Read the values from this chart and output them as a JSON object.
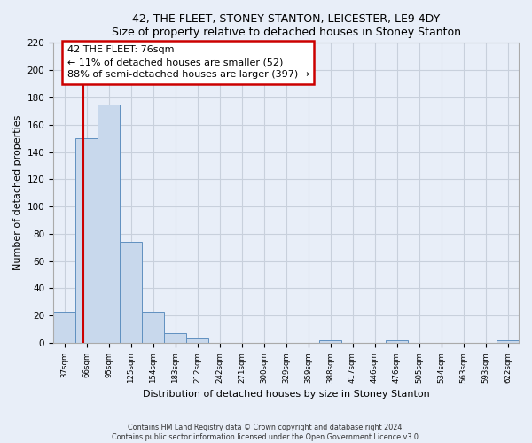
{
  "title": "42, THE FLEET, STONEY STANTON, LEICESTER, LE9 4DY",
  "subtitle": "Size of property relative to detached houses in Stoney Stanton",
  "xlabel": "Distribution of detached houses by size in Stoney Stanton",
  "ylabel": "Number of detached properties",
  "bin_labels": [
    "37sqm",
    "66sqm",
    "95sqm",
    "125sqm",
    "154sqm",
    "183sqm",
    "212sqm",
    "242sqm",
    "271sqm",
    "300sqm",
    "329sqm",
    "359sqm",
    "388sqm",
    "417sqm",
    "446sqm",
    "476sqm",
    "505sqm",
    "534sqm",
    "563sqm",
    "593sqm",
    "622sqm"
  ],
  "bar_heights": [
    23,
    150,
    175,
    74,
    23,
    7,
    3,
    0,
    0,
    0,
    0,
    0,
    2,
    0,
    0,
    2,
    0,
    0,
    0,
    0,
    2
  ],
  "bar_color": "#c8d8ec",
  "bar_edge_color": "#6090c0",
  "annotation_text_line1": "42 THE FLEET: 76sqm",
  "annotation_text_line2": "← 11% of detached houses are smaller (52)",
  "annotation_text_line3": "88% of semi-detached houses are larger (397) →",
  "annotation_box_color": "#ffffff",
  "annotation_box_edge_color": "#cc0000",
  "property_line_color": "#cc0000",
  "ylim": [
    0,
    220
  ],
  "yticks": [
    0,
    20,
    40,
    60,
    80,
    100,
    120,
    140,
    160,
    180,
    200,
    220
  ],
  "footer_line1": "Contains HM Land Registry data © Crown copyright and database right 2024.",
  "footer_line2": "Contains public sector information licensed under the Open Government Licence v3.0.",
  "bg_color": "#e8eef8",
  "plot_bg_color": "#e8eef8",
  "grid_color": "#c8d0dc"
}
